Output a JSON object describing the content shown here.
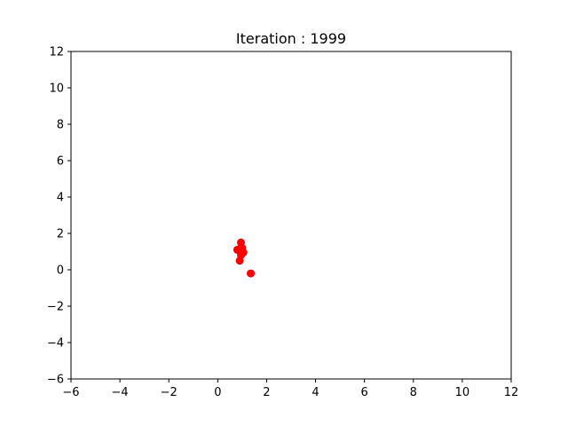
{
  "chart_data": {
    "type": "scatter",
    "title": "Iteration : 1999",
    "xlabel": "",
    "ylabel": "",
    "xlim": [
      -6,
      12
    ],
    "ylim": [
      -6,
      12
    ],
    "x_ticks": [
      -6,
      -4,
      -2,
      0,
      2,
      4,
      6,
      8,
      10,
      12
    ],
    "y_ticks": [
      -6,
      -4,
      -2,
      0,
      2,
      4,
      6,
      8,
      10,
      12
    ],
    "x_tick_labels": [
      "−6",
      "−4",
      "−2",
      "0",
      "2",
      "4",
      "6",
      "8",
      "10",
      "12"
    ],
    "y_tick_labels": [
      "−6",
      "−4",
      "−2",
      "0",
      "2",
      "4",
      "6",
      "8",
      "10",
      "12"
    ],
    "grid": false,
    "series": [
      {
        "color": "#ff0000",
        "points": [
          {
            "x": 0.95,
            "y": 1.5
          },
          {
            "x": 0.8,
            "y": 1.1
          },
          {
            "x": 0.9,
            "y": 1.15
          },
          {
            "x": 1.0,
            "y": 1.2
          },
          {
            "x": 0.95,
            "y": 1.0
          },
          {
            "x": 1.05,
            "y": 0.95
          },
          {
            "x": 0.95,
            "y": 0.8
          },
          {
            "x": 0.9,
            "y": 0.5
          },
          {
            "x": 1.35,
            "y": -0.2
          }
        ]
      }
    ]
  }
}
